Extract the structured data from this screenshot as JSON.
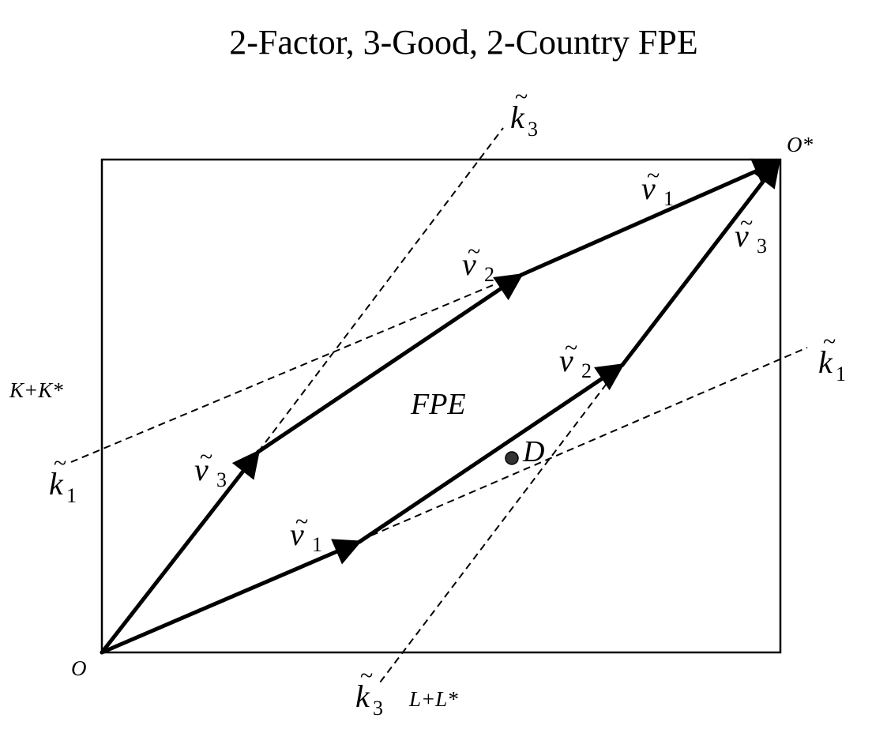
{
  "title": "2-Factor, 3-Good, 2-Country FPE",
  "region_label": "FPE",
  "point_label": "D",
  "origin_home": "O",
  "origin_foreign": "O*",
  "axis_capital": "K+K*",
  "axis_labor": "L+L*",
  "tilde_mark": "~",
  "vectors": [
    {
      "symbol": "v",
      "sub": "1"
    },
    {
      "symbol": "v",
      "sub": "2"
    },
    {
      "symbol": "v",
      "sub": "3"
    },
    {
      "symbol": "v",
      "sub": "3"
    },
    {
      "symbol": "v",
      "sub": "2"
    },
    {
      "symbol": "v",
      "sub": "1"
    }
  ],
  "rays": [
    {
      "symbol": "k",
      "sub": "1"
    },
    {
      "symbol": "k",
      "sub": "1"
    },
    {
      "symbol": "k",
      "sub": "3"
    },
    {
      "symbol": "k",
      "sub": "3"
    }
  ],
  "colors": {
    "ink": "#000000",
    "background": "#ffffff",
    "point_fill": "#333333"
  }
}
